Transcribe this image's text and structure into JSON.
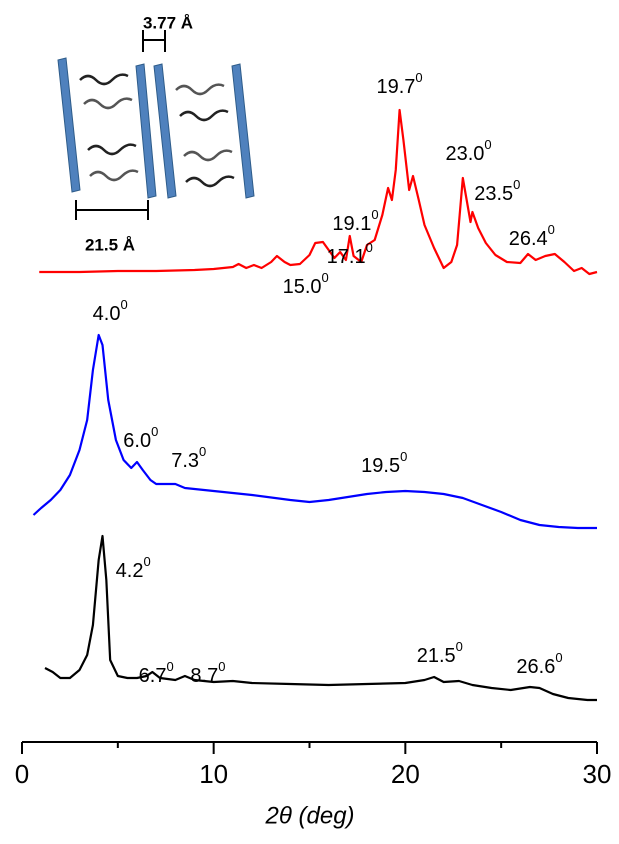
{
  "chart_data": {
    "type": "line",
    "x_label": "2θ (deg)",
    "xlim": [
      0,
      30
    ],
    "xticks": [
      0,
      10,
      20,
      30
    ],
    "xminor": [
      5,
      15,
      25
    ],
    "ylim": [
      0,
      670
    ],
    "series": [
      {
        "color": "#ff0000",
        "x": [
          0.9,
          3,
          5,
          7,
          9,
          10,
          11,
          11.3,
          11.7,
          12.1,
          12.5,
          13,
          13.3,
          13.7,
          14,
          14.5,
          15,
          15.3,
          15.7,
          16,
          16.3,
          16.6,
          16.9,
          17.1,
          17.3,
          17.7,
          18.0,
          18.4,
          18.8,
          19.1,
          19.3,
          19.5,
          19.7,
          19.9,
          20.2,
          20.4,
          20.7,
          21,
          21.5,
          22,
          22.4,
          22.7,
          23.0,
          23.2,
          23.4,
          23.5,
          23.8,
          24.2,
          24.7,
          25.3,
          26,
          26.4,
          26.8,
          27.3,
          27.8,
          28.3,
          28.8,
          29.2,
          29.6,
          30
        ],
        "values": [
          470,
          470,
          471,
          471,
          472,
          473,
          475,
          478,
          474,
          477,
          474,
          480,
          486,
          480,
          477,
          478,
          487,
          499,
          500,
          492,
          484,
          490,
          482,
          506,
          486,
          480,
          497,
          502,
          527,
          554,
          542,
          572,
          632,
          602,
          552,
          566,
          542,
          517,
          494,
          474,
          480,
          497,
          564,
          542,
          520,
          530,
          514,
          499,
          487,
          480,
          479,
          488,
          482,
          486,
          488,
          480,
          471,
          474,
          468,
          470
        ]
      },
      {
        "color": "#0000ff",
        "x": [
          0.6,
          1,
          1.5,
          2,
          2.5,
          3,
          3.4,
          3.7,
          4.0,
          4.2,
          4.5,
          4.9,
          5.3,
          5.7,
          6.0,
          6.3,
          6.7,
          7.0,
          7.5,
          8,
          8.5,
          9,
          10,
          12,
          14,
          15,
          16,
          17,
          18,
          19,
          20,
          21,
          22,
          23,
          24,
          25,
          26,
          27,
          28,
          29,
          30
        ],
        "values": [
          227,
          234,
          242,
          252,
          267,
          292,
          322,
          372,
          407,
          397,
          342,
          302,
          282,
          274,
          280,
          272,
          262,
          258,
          258,
          258,
          254,
          253,
          251,
          247,
          242,
          240,
          242,
          245,
          248,
          250,
          251,
          250,
          248,
          244,
          237,
          230,
          222,
          217,
          215,
          214,
          214
        ]
      },
      {
        "color": "#000000",
        "x": [
          1.2,
          1.6,
          2,
          2.5,
          3,
          3.4,
          3.7,
          4.0,
          4.2,
          4.4,
          4.6,
          5,
          5.5,
          6,
          6.5,
          6.8,
          7.2,
          8,
          8.5,
          9,
          10,
          11,
          12,
          14,
          16,
          18,
          20,
          21,
          21.5,
          22,
          22.8,
          23.5,
          24.5,
          25.5,
          26.5,
          27,
          27.7,
          28.5,
          29.5,
          30
        ],
        "values": [
          74,
          70,
          64,
          64,
          72,
          87,
          117,
          182,
          206,
          162,
          82,
          66,
          64,
          64,
          66,
          70,
          64,
          62,
          66,
          62,
          60,
          61,
          59,
          58,
          57,
          58,
          59,
          62,
          65,
          60,
          61,
          57,
          54,
          52,
          55,
          54,
          48,
          44,
          42,
          42
        ]
      }
    ],
    "annotations": [
      {
        "text": "19.7",
        "sup": "0",
        "x": 19.7,
        "y": 654
      },
      {
        "text": "19.1",
        "sup": "0",
        "x": 17.4,
        "y": 517
      },
      {
        "text": "17.1",
        "sup": "0",
        "x": 17.1,
        "y": 484
      },
      {
        "text": "15.0",
        "sup": "0",
        "x": 14.8,
        "y": 454
      },
      {
        "text": "23.0",
        "sup": "0",
        "x": 23.3,
        "y": 587
      },
      {
        "text": "23.5",
        "sup": "0",
        "x": 24.8,
        "y": 547
      },
      {
        "text": "26.4",
        "sup": "0",
        "x": 26.6,
        "y": 502
      },
      {
        "text": "4.0",
        "sup": "0",
        "x": 4.6,
        "y": 427
      },
      {
        "text": "6.0",
        "sup": "0",
        "x": 6.2,
        "y": 300
      },
      {
        "text": "7.3",
        "sup": "0",
        "x": 8.7,
        "y": 280
      },
      {
        "text": "19.5",
        "sup": "0",
        "x": 18.9,
        "y": 275
      },
      {
        "text": "4.2",
        "sup": "0",
        "x": 5.8,
        "y": 170
      },
      {
        "text": "6.7",
        "sup": "0",
        "x": 7.0,
        "y": 65
      },
      {
        "text": "8.7",
        "sup": "0",
        "x": 9.7,
        "y": 65
      },
      {
        "text": "21.5",
        "sup": "0",
        "x": 21.8,
        "y": 85
      },
      {
        "text": "26.6",
        "sup": "0",
        "x": 27.0,
        "y": 74
      }
    ],
    "inset_labels": [
      "3.77 Å",
      "21.5 Å"
    ]
  }
}
